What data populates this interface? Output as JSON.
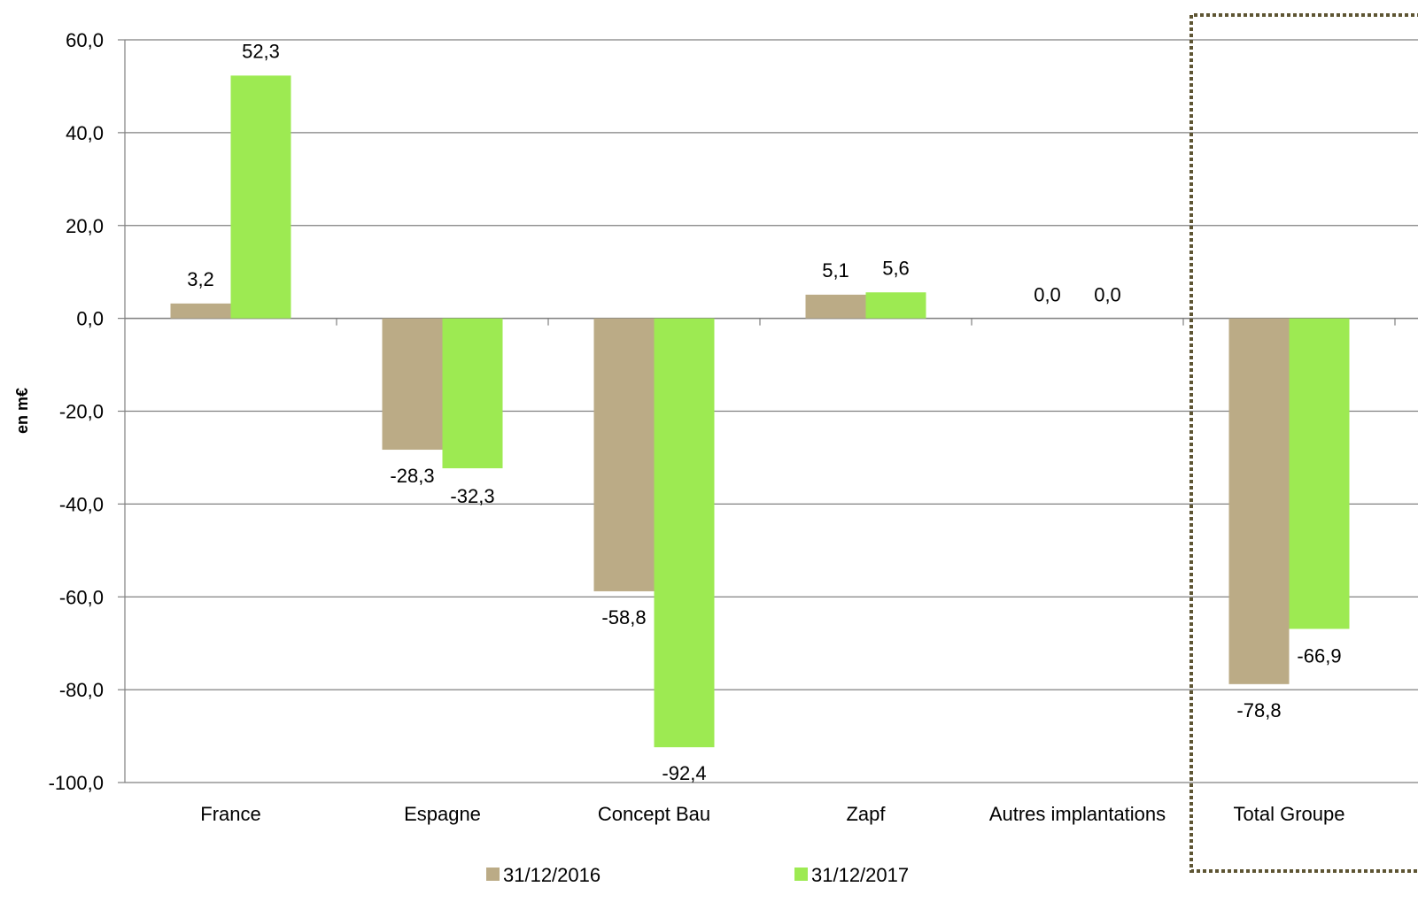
{
  "chart_data": {
    "type": "bar",
    "title": "",
    "xlabel": "",
    "ylabel": "en m€",
    "ylim": [
      -100,
      60
    ],
    "yticks": [
      60,
      40,
      20,
      0,
      -20,
      -40,
      -60,
      -80,
      -100
    ],
    "ytick_labels": [
      "60,0",
      "40,0",
      "20,0",
      "0,0",
      "-20,0",
      "-40,0",
      "-60,0",
      "-80,0",
      "-100,0"
    ],
    "grid": true,
    "legend_position": "bottom",
    "categories": [
      "France",
      "Espagne",
      "Concept Bau",
      "Zapf",
      "Autres implantations",
      "Total Groupe"
    ],
    "series": [
      {
        "name": "31/12/2016",
        "color": "#BBAB86",
        "values": [
          3.2,
          -28.3,
          -58.8,
          5.1,
          0.0,
          -78.8
        ],
        "labels": [
          "3,2",
          "-28,3",
          "-58,8",
          "5,1",
          "0,0",
          "-78,8"
        ]
      },
      {
        "name": "31/12/2017",
        "color": "#9DEA52",
        "values": [
          52.3,
          -32.3,
          -92.4,
          5.6,
          0.0,
          -66.9
        ],
        "labels": [
          "52,3",
          "-32,3",
          "-92,4",
          "5,6",
          "0,0",
          "-66,9"
        ]
      }
    ],
    "highlight": {
      "category": "Total Groupe",
      "style": "dotted-border",
      "color": "#5E5533"
    }
  }
}
